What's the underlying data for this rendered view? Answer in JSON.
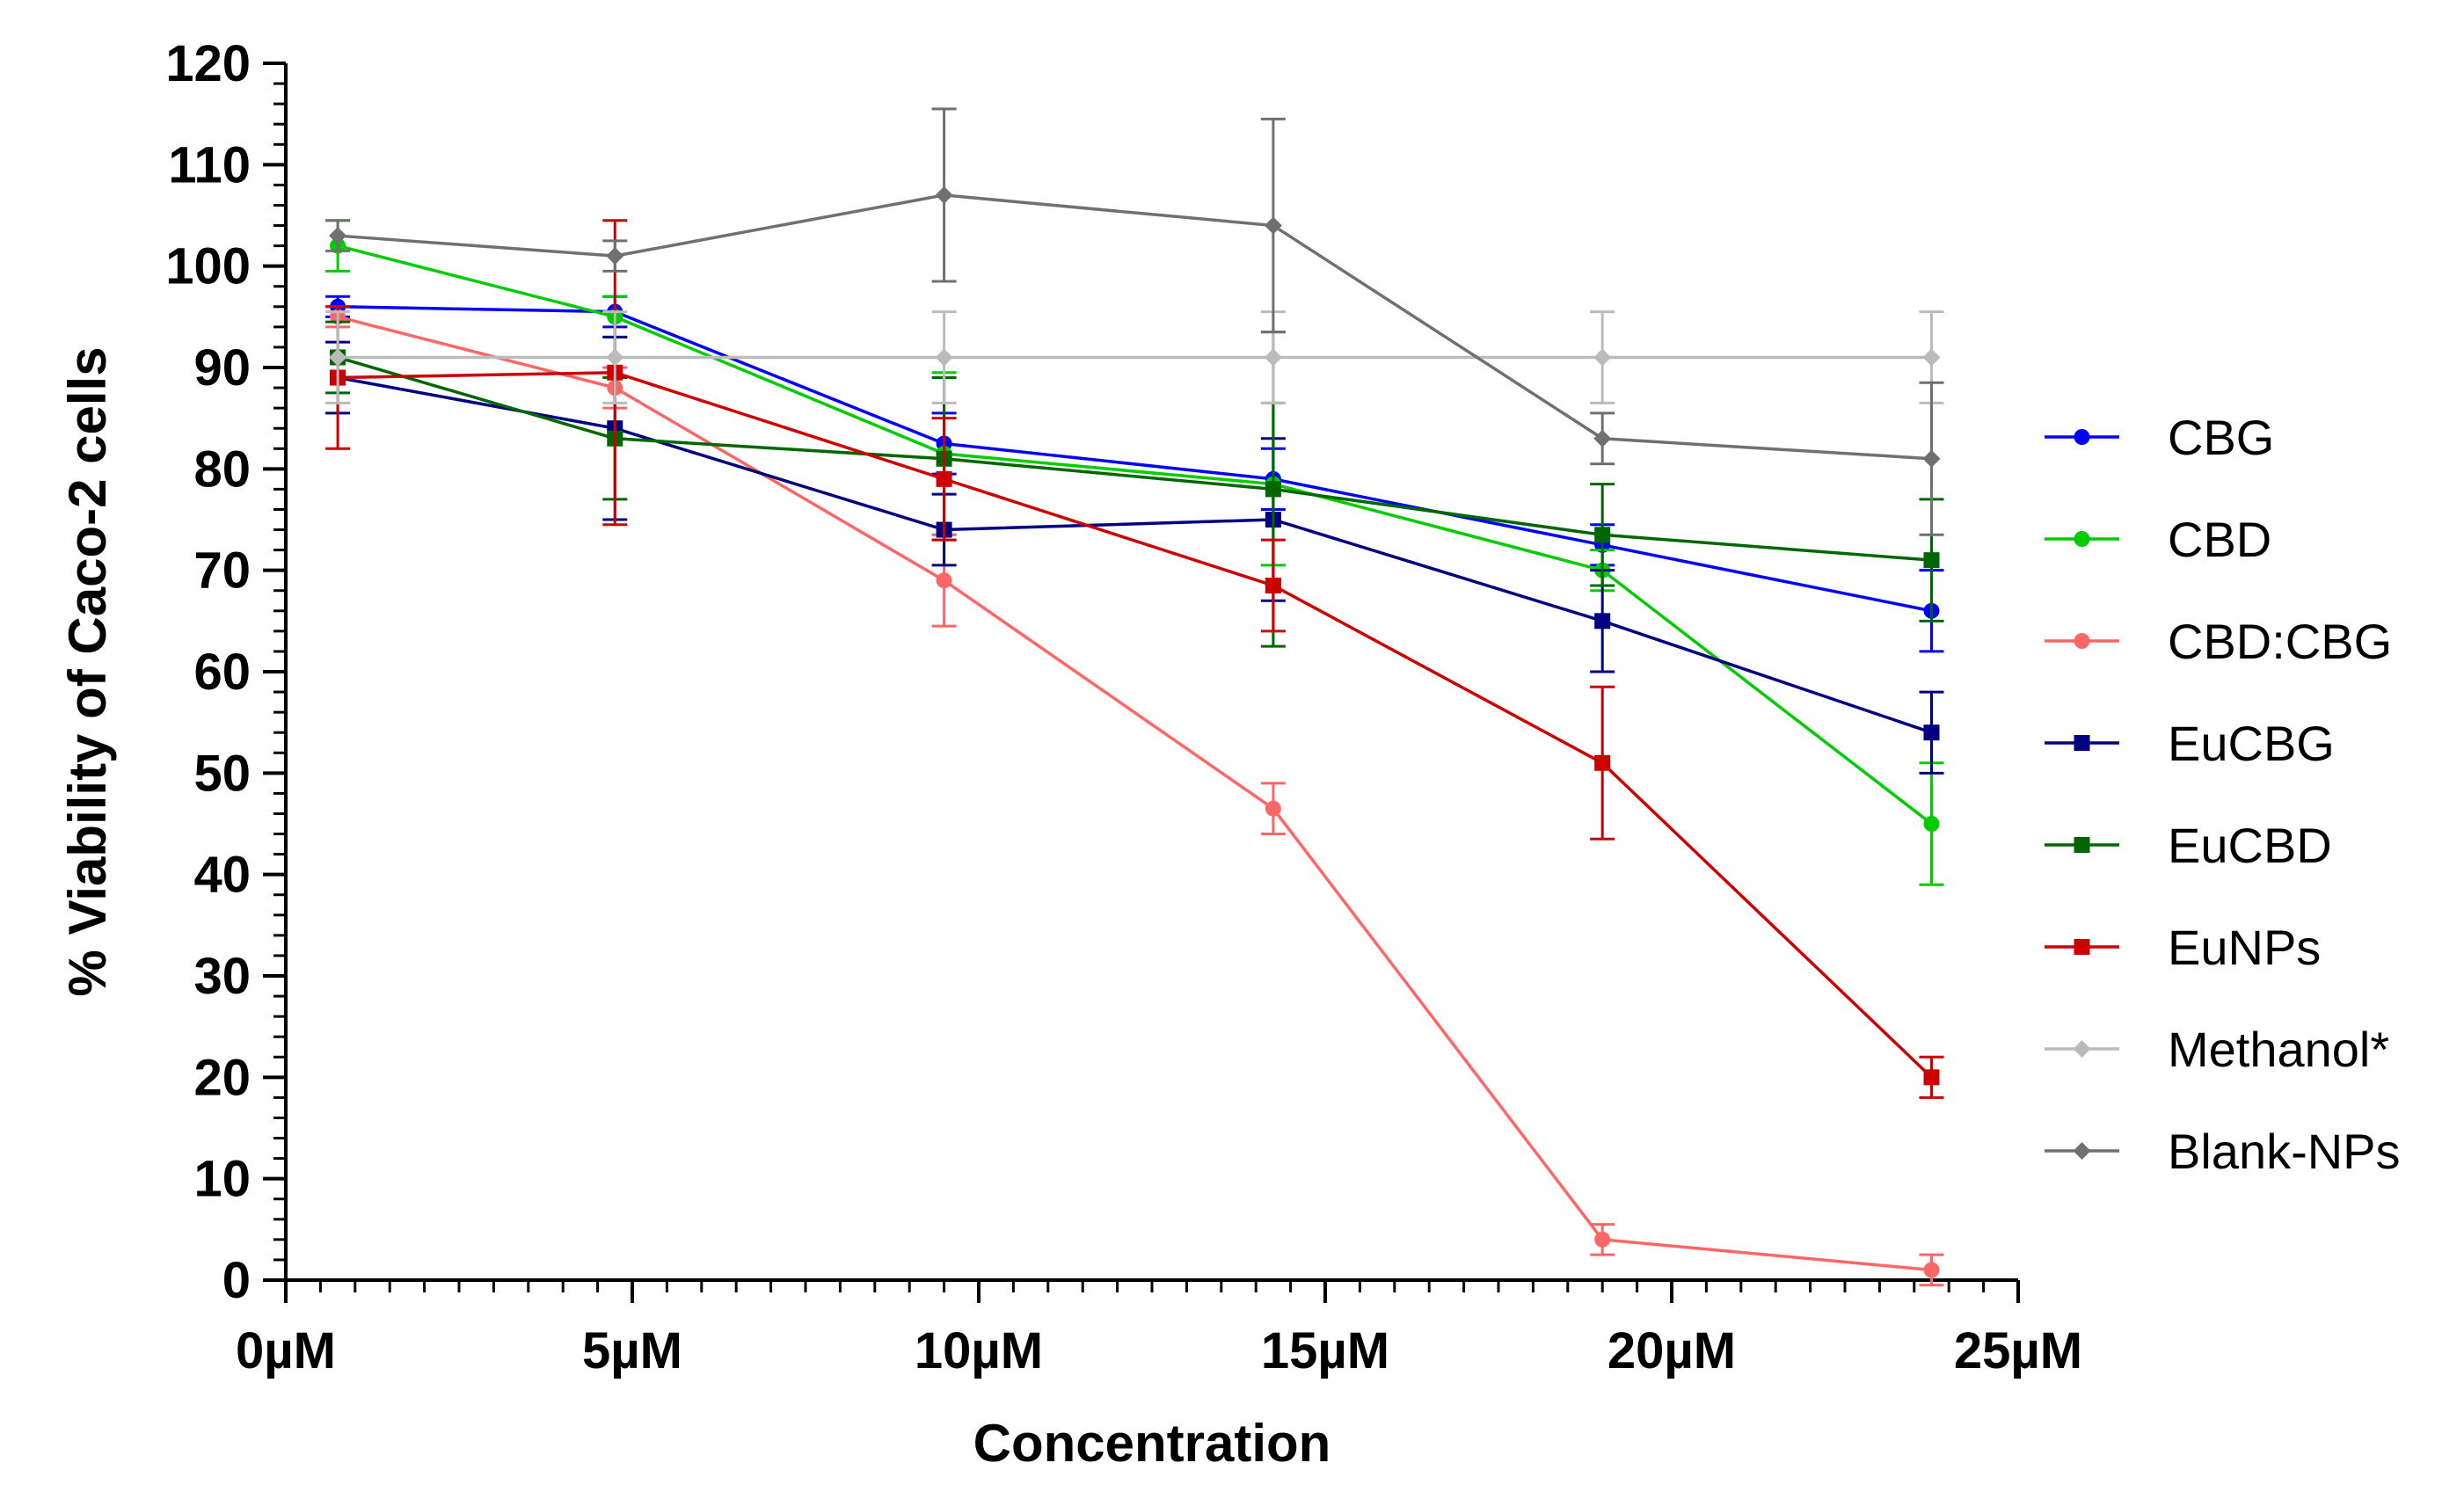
{
  "chart_data": {
    "type": "line",
    "title": "",
    "xlabel": "Concentration",
    "ylabel": "% Viability of Caco-2 cells",
    "xlim": [
      0,
      25
    ],
    "ylim": [
      0,
      120
    ],
    "x_ticks": [
      0,
      5,
      10,
      15,
      20,
      25
    ],
    "x_tick_labels": [
      "0µM",
      "5µM",
      "10µM",
      "15µM",
      "20µM",
      "25µM"
    ],
    "y_ticks": [
      0,
      10,
      20,
      30,
      40,
      50,
      60,
      70,
      80,
      90,
      100,
      110,
      120
    ],
    "y_tick_labels": [
      "0",
      "10",
      "20",
      "30",
      "40",
      "50",
      "60",
      "70",
      "80",
      "90",
      "100",
      "110",
      "120"
    ],
    "legend_position": "right",
    "x": [
      0.75,
      4.75,
      9.5,
      14.25,
      19.0,
      23.75
    ],
    "series": [
      {
        "name": "CBG",
        "color": "#0000ff",
        "marker": "circle",
        "values": [
          96,
          95.5,
          82.5,
          79,
          72.5,
          66
        ],
        "errors": [
          1,
          1.5,
          3,
          3,
          2,
          4
        ]
      },
      {
        "name": "CBD",
        "color": "#00cc00",
        "marker": "circle",
        "values": [
          102,
          95,
          81.5,
          78.5,
          70,
          45
        ],
        "errors": [
          2.5,
          2,
          8,
          8,
          2,
          6
        ]
      },
      {
        "name": "CBD:CBG",
        "color": "#ff6666",
        "marker": "circle",
        "values": [
          95,
          88,
          69,
          46.5,
          4,
          1
        ],
        "errors": [
          1,
          2,
          4.5,
          2.5,
          1.5,
          1.5
        ]
      },
      {
        "name": "EuCBG",
        "color": "#000080",
        "marker": "square",
        "values": [
          89,
          84,
          74,
          75,
          65,
          54
        ],
        "errors": [
          3.5,
          9,
          3.5,
          8,
          5,
          4
        ]
      },
      {
        "name": "EuCBD",
        "color": "#006600",
        "marker": "square",
        "values": [
          91,
          83,
          81,
          78,
          73.5,
          71
        ],
        "errors": [
          3.5,
          6,
          8,
          15.5,
          5,
          6
        ]
      },
      {
        "name": "EuNPs",
        "color": "#cc0000",
        "marker": "square",
        "values": [
          89,
          89.5,
          79,
          68.5,
          51,
          20
        ],
        "errors": [
          7,
          15,
          6,
          4.5,
          7.5,
          2
        ]
      },
      {
        "name": "Methanol*",
        "color": "#bbbbbb",
        "marker": "diamond",
        "values": [
          91,
          91,
          91,
          91,
          91,
          91
        ],
        "errors": [
          4.5,
          4.5,
          4.5,
          4.5,
          4.5,
          4.5
        ]
      },
      {
        "name": "Blank-NPs",
        "color": "#707070",
        "marker": "diamond",
        "values": [
          103,
          101,
          107,
          104,
          83,
          81
        ],
        "errors": [
          1.5,
          1.5,
          8.5,
          10.5,
          2.5,
          7.5
        ]
      }
    ]
  }
}
